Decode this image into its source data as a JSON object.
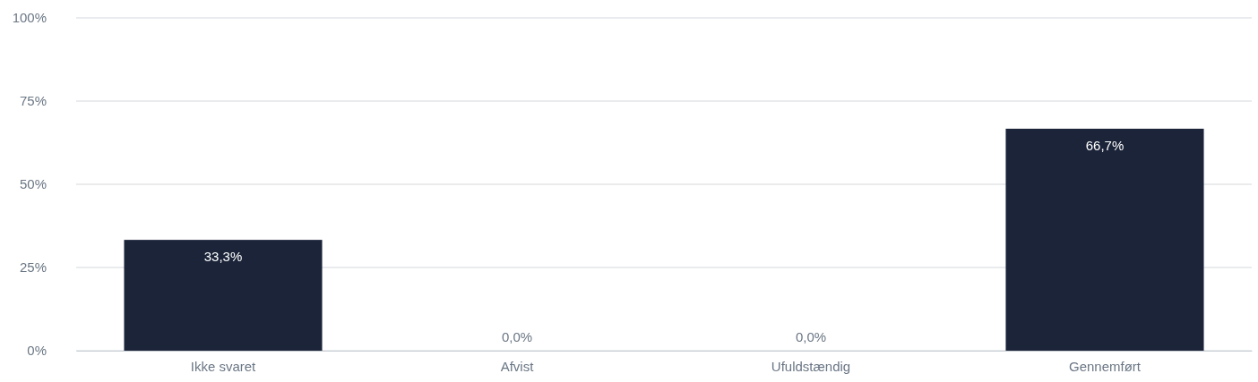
{
  "chart_data": {
    "type": "bar",
    "categories": [
      "Ikke svaret",
      "Afvist",
      "Ufuldstændig",
      "Gennemført"
    ],
    "values": [
      33.3,
      0,
      0,
      66.7
    ],
    "color": "#1b2439",
    "value_labels": [
      "33,3%",
      "0,0%",
      "0,0%",
      "66,7%"
    ],
    "ylim": [
      0,
      100
    ],
    "yticks": [
      {
        "value": 0,
        "label": "0%"
      },
      {
        "value": 25,
        "label": "25%"
      },
      {
        "value": 50,
        "label": "50%"
      },
      {
        "value": 75,
        "label": "75%"
      },
      {
        "value": 100,
        "label": "100%"
      }
    ],
    "grid": "y"
  }
}
